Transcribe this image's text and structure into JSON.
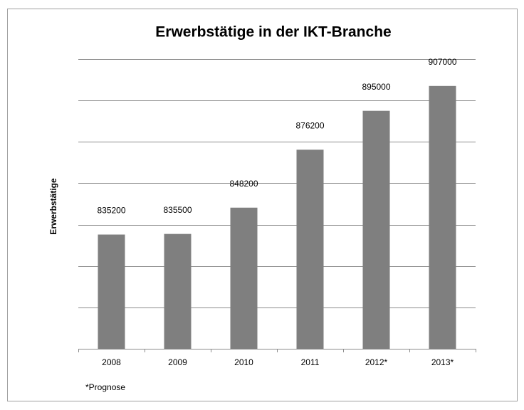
{
  "chart_data": {
    "type": "bar",
    "title": "Erwerbstätige in der IKT-Branche",
    "ylabel": "Erwerbstätige",
    "categories": [
      "2008",
      "2009",
      "2010",
      "2011",
      "2012*",
      "2013*"
    ],
    "values": [
      835200,
      835500,
      848200,
      876200,
      895000,
      907000
    ],
    "color": "#7f7f7f",
    "ylim": [
      780000,
      920000
    ],
    "yticks": [
      780000,
      800000,
      820000,
      840000,
      860000,
      880000,
      900000,
      920000
    ],
    "grid": true,
    "note": "*Prognose"
  }
}
